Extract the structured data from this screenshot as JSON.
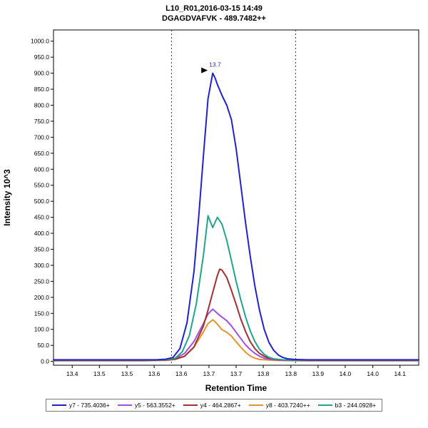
{
  "header": {
    "title": "L10_R01,2016-03-15 14:49",
    "subtitle": "DGAGDVAFVK - 489.7482++"
  },
  "chart_data": {
    "type": "line",
    "title": "L10_R01,2016-03-15 14:49",
    "subtitle": "DGAGDVAFVK - 489.7482++",
    "xlabel": "Retention Time",
    "ylabel": "Intensity 10^3",
    "xlim": [
      13.36,
      14.14
    ],
    "ylim": [
      0,
      1000
    ],
    "grid": false,
    "legend_position": "bottom",
    "x_tick_values": [
      13.4,
      13.458,
      13.517,
      13.575,
      13.633,
      13.692,
      13.75,
      13.808,
      13.867,
      13.925,
      13.983,
      14.042,
      14.1
    ],
    "x_tick_labels": [
      "13.4",
      "13.5",
      "13.5",
      "13.6",
      "13.6",
      "13.7",
      "13.7",
      "13.8",
      "13.8",
      "13.9",
      "14.0",
      "14.0",
      "14.1"
    ],
    "y_ticks": [
      0,
      50,
      100,
      150,
      200,
      250,
      300,
      350,
      400,
      450,
      500,
      550,
      600,
      650,
      700,
      750,
      800,
      850,
      900,
      950,
      1000
    ],
    "y_tick_labels": [
      "0.0",
      "50.0",
      "100.0",
      "150.0",
      "200.0",
      "250.0",
      "300.0",
      "350.0",
      "400.0",
      "450.0",
      "500.0",
      "550.0",
      "600.0",
      "650.0",
      "700.0",
      "750.0",
      "800.0",
      "850.0",
      "900.0",
      "950.0",
      "1000.0"
    ],
    "integration_boundaries": [
      13.612,
      13.877
    ],
    "peak_annotation": {
      "x": 13.7,
      "y": 900,
      "text": "13.7"
    },
    "draw_order": [
      3,
      1,
      2,
      4,
      0
    ],
    "series": [
      {
        "id": "y7",
        "name": "y7 - 735.4036+",
        "color": "#2222cc",
        "points": [
          [
            13.36,
            5
          ],
          [
            13.42,
            5
          ],
          [
            13.48,
            5
          ],
          [
            13.54,
            5
          ],
          [
            13.58,
            5
          ],
          [
            13.6,
            7
          ],
          [
            13.615,
            12
          ],
          [
            13.63,
            40
          ],
          [
            13.645,
            120
          ],
          [
            13.66,
            280
          ],
          [
            13.67,
            450
          ],
          [
            13.68,
            640
          ],
          [
            13.69,
            820
          ],
          [
            13.7,
            900
          ],
          [
            13.705,
            885
          ],
          [
            13.71,
            865
          ],
          [
            13.72,
            830
          ],
          [
            13.73,
            800
          ],
          [
            13.74,
            755
          ],
          [
            13.75,
            665
          ],
          [
            13.76,
            550
          ],
          [
            13.77,
            435
          ],
          [
            13.78,
            330
          ],
          [
            13.79,
            235
          ],
          [
            13.8,
            160
          ],
          [
            13.81,
            100
          ],
          [
            13.82,
            60
          ],
          [
            13.83,
            35
          ],
          [
            13.84,
            20
          ],
          [
            13.85,
            12
          ],
          [
            13.86,
            8
          ],
          [
            13.875,
            6
          ],
          [
            13.9,
            5
          ],
          [
            13.95,
            5
          ],
          [
            14.0,
            5
          ],
          [
            14.05,
            5
          ],
          [
            14.1,
            5
          ],
          [
            14.14,
            5
          ]
        ]
      },
      {
        "id": "y5",
        "name": "y5 - 563.3552+",
        "color": "#a050e0",
        "points": [
          [
            13.36,
            3
          ],
          [
            13.55,
            3
          ],
          [
            13.6,
            4
          ],
          [
            13.62,
            9
          ],
          [
            13.64,
            25
          ],
          [
            13.66,
            62
          ],
          [
            13.68,
            118
          ],
          [
            13.69,
            148
          ],
          [
            13.7,
            163
          ],
          [
            13.71,
            150
          ],
          [
            13.72,
            138
          ],
          [
            13.73,
            127
          ],
          [
            13.74,
            111
          ],
          [
            13.75,
            91
          ],
          [
            13.76,
            71
          ],
          [
            13.77,
            52
          ],
          [
            13.78,
            37
          ],
          [
            13.79,
            25
          ],
          [
            13.8,
            16
          ],
          [
            13.81,
            10
          ],
          [
            13.82,
            7
          ],
          [
            13.84,
            4
          ],
          [
            13.86,
            3
          ],
          [
            13.9,
            3
          ],
          [
            14.0,
            3
          ],
          [
            14.14,
            3
          ]
        ]
      },
      {
        "id": "y4",
        "name": "y4 - 464.2867+",
        "color": "#a03232",
        "points": [
          [
            13.36,
            3
          ],
          [
            13.55,
            3
          ],
          [
            13.6,
            4
          ],
          [
            13.62,
            7
          ],
          [
            13.64,
            16
          ],
          [
            13.66,
            45
          ],
          [
            13.68,
            110
          ],
          [
            13.69,
            160
          ],
          [
            13.7,
            215
          ],
          [
            13.71,
            268
          ],
          [
            13.715,
            288
          ],
          [
            13.72,
            285
          ],
          [
            13.73,
            262
          ],
          [
            13.74,
            222
          ],
          [
            13.75,
            178
          ],
          [
            13.76,
            132
          ],
          [
            13.77,
            94
          ],
          [
            13.78,
            62
          ],
          [
            13.79,
            40
          ],
          [
            13.8,
            25
          ],
          [
            13.81,
            16
          ],
          [
            13.82,
            10
          ],
          [
            13.84,
            5
          ],
          [
            13.86,
            4
          ],
          [
            13.9,
            3
          ],
          [
            14.0,
            3
          ],
          [
            14.14,
            3
          ]
        ]
      },
      {
        "id": "y8",
        "name": "y8 - 403.7240++",
        "color": "#e8922e",
        "points": [
          [
            13.36,
            2
          ],
          [
            13.55,
            2
          ],
          [
            13.6,
            3
          ],
          [
            13.62,
            6
          ],
          [
            13.64,
            16
          ],
          [
            13.66,
            44
          ],
          [
            13.68,
            92
          ],
          [
            13.69,
            118
          ],
          [
            13.7,
            130
          ],
          [
            13.705,
            124
          ],
          [
            13.71,
            116
          ],
          [
            13.72,
            99
          ],
          [
            13.73,
            91
          ],
          [
            13.74,
            79
          ],
          [
            13.75,
            61
          ],
          [
            13.76,
            44
          ],
          [
            13.77,
            29
          ],
          [
            13.78,
            17
          ],
          [
            13.79,
            10
          ],
          [
            13.8,
            6
          ],
          [
            13.82,
            4
          ],
          [
            13.84,
            3
          ],
          [
            13.88,
            2
          ],
          [
            14.0,
            2
          ],
          [
            14.14,
            2
          ]
        ]
      },
      {
        "id": "b3",
        "name": "b3 - 244.0928+",
        "color": "#22a38c",
        "points": [
          [
            13.36,
            4
          ],
          [
            13.5,
            4
          ],
          [
            13.58,
            4
          ],
          [
            13.6,
            5
          ],
          [
            13.62,
            10
          ],
          [
            13.635,
            30
          ],
          [
            13.65,
            80
          ],
          [
            13.665,
            180
          ],
          [
            13.68,
            330
          ],
          [
            13.69,
            455
          ],
          [
            13.7,
            418
          ],
          [
            13.71,
            450
          ],
          [
            13.72,
            428
          ],
          [
            13.73,
            378
          ],
          [
            13.74,
            315
          ],
          [
            13.75,
            250
          ],
          [
            13.76,
            192
          ],
          [
            13.77,
            140
          ],
          [
            13.78,
            96
          ],
          [
            13.79,
            62
          ],
          [
            13.8,
            38
          ],
          [
            13.81,
            22
          ],
          [
            13.82,
            13
          ],
          [
            13.83,
            8
          ],
          [
            13.85,
            5
          ],
          [
            13.88,
            4
          ],
          [
            13.95,
            4
          ],
          [
            14.05,
            4
          ],
          [
            14.14,
            4
          ]
        ]
      }
    ]
  }
}
